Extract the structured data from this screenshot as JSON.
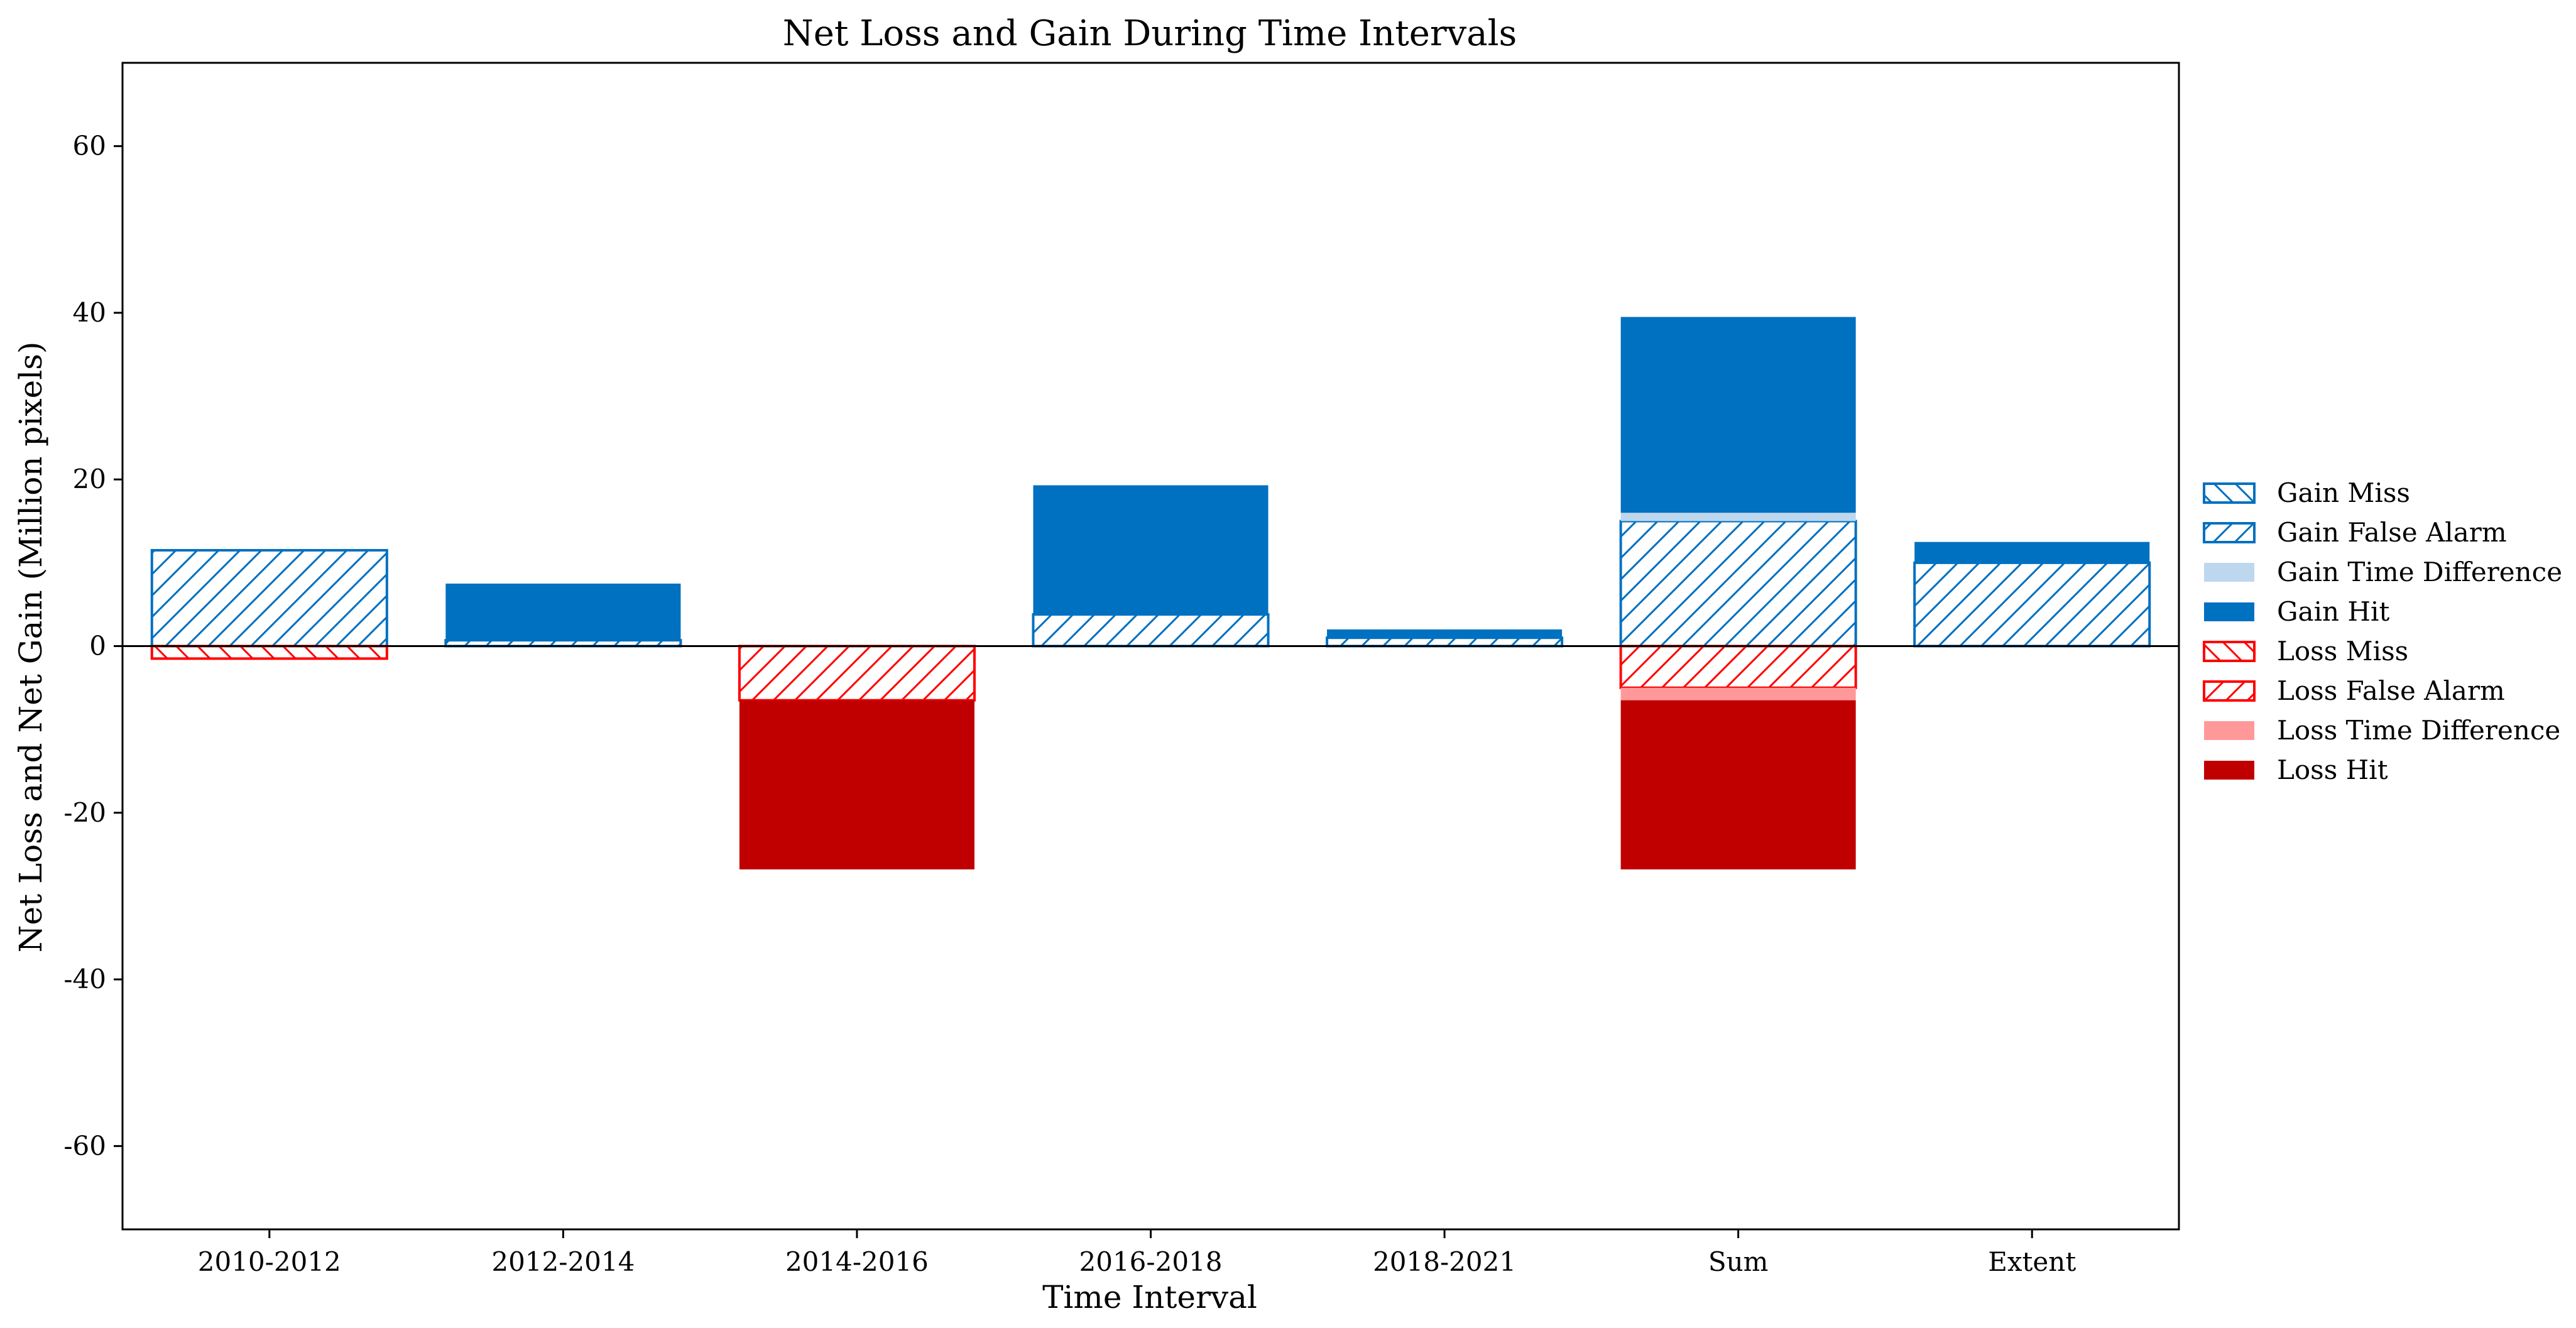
{
  "chart_data": {
    "type": "bar",
    "stacked": true,
    "title": "Net Loss and Gain During Time Intervals",
    "xlabel": "Time Interval",
    "ylabel": "Net Loss and Net Gain (Million pixels)",
    "ylim": [
      -70,
      70
    ],
    "yticks": [
      -60,
      -40,
      -20,
      0,
      20,
      40,
      60
    ],
    "ytick_labels": [
      "-60",
      "-40",
      "-20",
      "0",
      "20",
      "40",
      "60"
    ],
    "grid": false,
    "legend_position": "right",
    "categories": [
      "2010-2012",
      "2012-2014",
      "2014-2016",
      "2016-2018",
      "2018-2021",
      "Sum",
      "Extent"
    ],
    "series": [
      {
        "name": "Gain Miss",
        "color": "#0070C0",
        "style": "hatch-back",
        "values": [
          0,
          0,
          0,
          0,
          0,
          0,
          0
        ]
      },
      {
        "name": "Gain False Alarm",
        "color": "#0070C0",
        "style": "hatch-forward",
        "values": [
          11.5,
          0.7,
          0,
          3.8,
          1.0,
          15.0,
          10.0
        ]
      },
      {
        "name": "Gain Time Difference",
        "color": "#BDD7EE",
        "style": "solid",
        "values": [
          0,
          0,
          0,
          0,
          0,
          1.0,
          0
        ]
      },
      {
        "name": "Gain Hit",
        "color": "#0070C0",
        "style": "solid",
        "values": [
          0,
          6.8,
          0,
          15.5,
          1.0,
          23.5,
          2.5
        ]
      },
      {
        "name": "Loss Miss",
        "color": "#FF0000",
        "style": "hatch-back",
        "values": [
          -1.5,
          0,
          0,
          0,
          0,
          0,
          0
        ]
      },
      {
        "name": "Loss False Alarm",
        "color": "#FF0000",
        "style": "hatch-forward",
        "values": [
          0,
          0,
          -6.5,
          0,
          0,
          -5.0,
          0
        ]
      },
      {
        "name": "Loss Time Difference",
        "color": "#FF9999",
        "style": "solid",
        "values": [
          0,
          0,
          0,
          0,
          0,
          -1.5,
          0
        ]
      },
      {
        "name": "Loss Hit",
        "color": "#C00000",
        "style": "solid",
        "values": [
          0,
          0,
          -20.3,
          0,
          0,
          -20.3,
          0
        ]
      }
    ]
  }
}
